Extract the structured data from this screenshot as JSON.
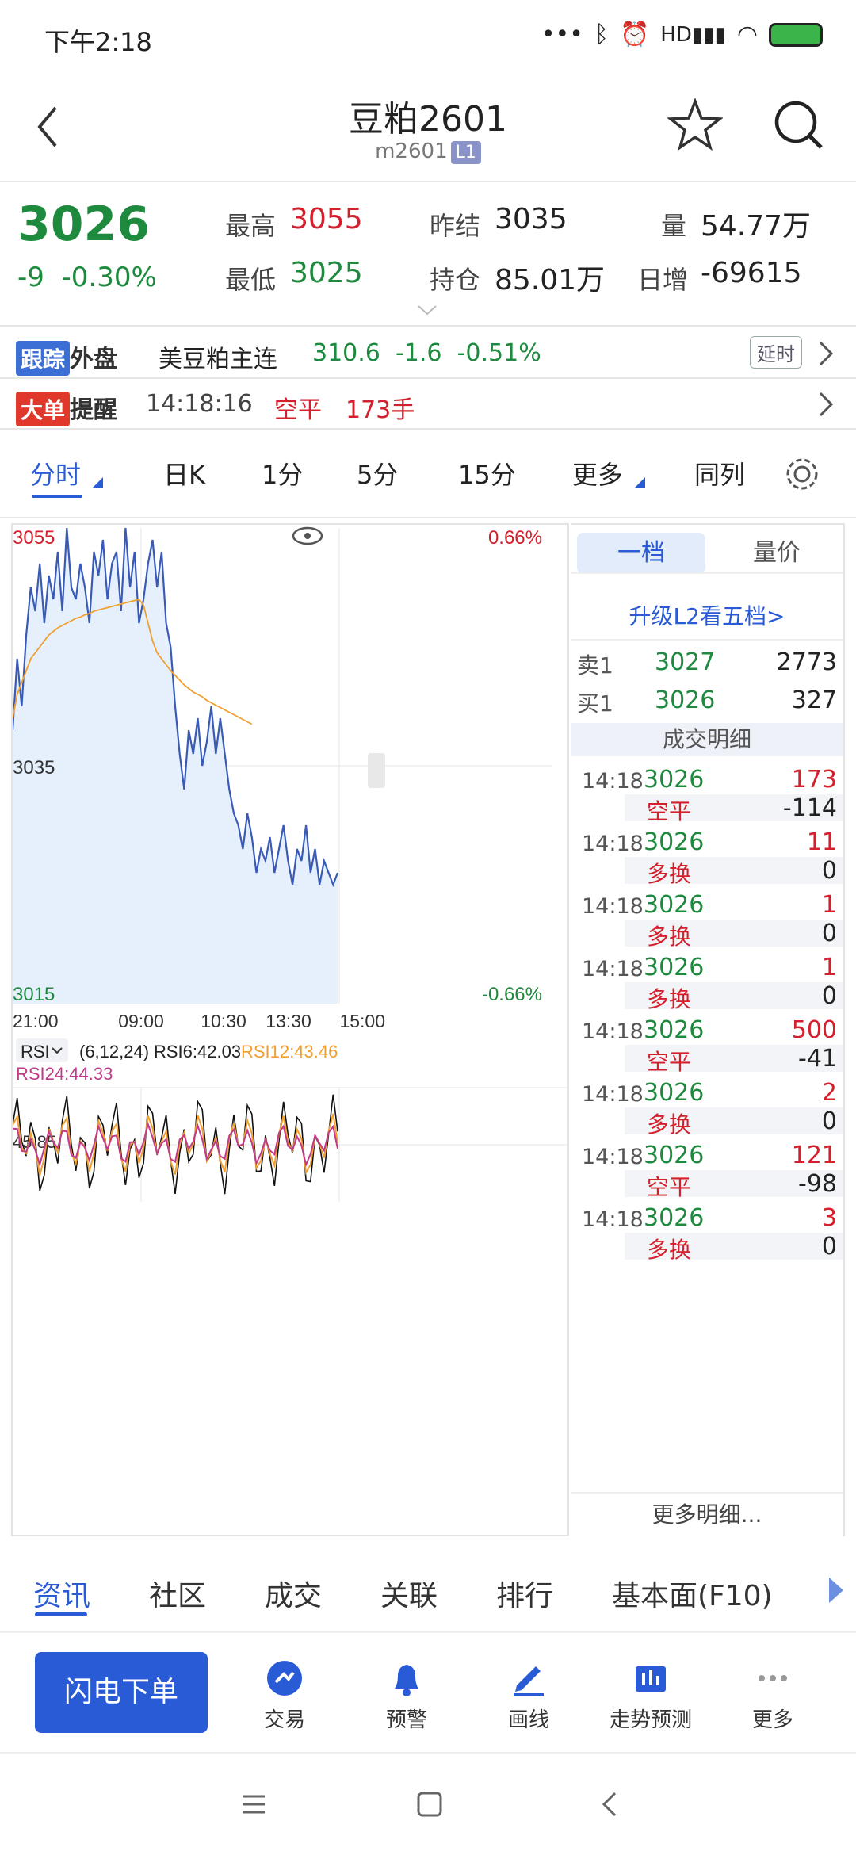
{
  "status": {
    "time": "下午2:18",
    "hd": "HD"
  },
  "header": {
    "title": "豆粕2601",
    "code": "m2601",
    "level": "L1"
  },
  "quote": {
    "price": "3026",
    "change": "-9",
    "change_pct": "-0.30%",
    "high_label": "最高",
    "high": "3055",
    "low_label": "最低",
    "low": "3025",
    "prev_settle_label": "昨结",
    "prev_settle": "3035",
    "open_int_label": "持仓",
    "open_int": "85.01万",
    "vol_label": "量",
    "vol": "54.77万",
    "daily_inc_label": "日增",
    "daily_inc": "-69615"
  },
  "foreign": {
    "tag1": "跟踪",
    "tag2": "外盘",
    "name": "美豆粕主连",
    "price": "310.6",
    "change": "-1.6",
    "change_pct": "-0.51%",
    "delay": "延时"
  },
  "bigorder": {
    "tag1": "大单",
    "tag2": "提醒",
    "time": "14:18:16",
    "type": "空平",
    "qty": "173手"
  },
  "tabs": {
    "items": [
      "分时",
      "日K",
      "1分",
      "5分",
      "15分",
      "更多",
      "同列"
    ]
  },
  "chart_data": {
    "type": "line",
    "y_top": "3055",
    "y_mid": "3035",
    "y_bottom": "3015",
    "pct_top": "0.66%",
    "pct_bottom": "-0.66%",
    "x_labels": [
      "21:00",
      "09:00",
      "10:30",
      "13:30",
      "15:00"
    ],
    "ylim": [
      3015,
      3055
    ],
    "price_series": {
      "name": "price",
      "values": [
        3038,
        3044,
        3040,
        3046,
        3050,
        3048,
        3052,
        3047,
        3051,
        3049,
        3053,
        3048,
        3055,
        3050,
        3049,
        3052,
        3050,
        3047,
        3053,
        3051,
        3054,
        3049,
        3052,
        3053,
        3048,
        3055,
        3050,
        3053,
        3047,
        3049,
        3052,
        3054,
        3050,
        3053,
        3047,
        3045,
        3040,
        3036,
        3033,
        3038,
        3036,
        3039,
        3035,
        3037,
        3040,
        3036,
        3039,
        3036,
        3033,
        3031,
        3030,
        3028,
        3031,
        3029,
        3026,
        3028,
        3027,
        3029,
        3026,
        3028,
        3030,
        3027,
        3025,
        3028,
        3027,
        3030,
        3026,
        3028,
        3025,
        3027,
        3026,
        3025,
        3026
      ]
    },
    "avg_series": {
      "name": "avg",
      "values": [
        3039,
        3041,
        3042,
        3043,
        3044,
        3044.5,
        3045,
        3045.5,
        3046,
        3046.3,
        3046.6,
        3046.8,
        3047,
        3047.2,
        3047.4,
        3047.5,
        3047.7,
        3047.8,
        3048,
        3048.1,
        3048.2,
        3048.3,
        3048.4,
        3048.5,
        3048.6,
        3048.7,
        3048.8,
        3048.9,
        3049,
        3048.5,
        3047,
        3045.5,
        3044.5,
        3044,
        3043.5,
        3043,
        3042.6,
        3042.2,
        3041.8,
        3041.5,
        3041.2,
        3041,
        3040.8,
        3040.5,
        3040.3,
        3040.1,
        3039.9,
        3039.7,
        3039.5,
        3039.3,
        3039.1,
        3038.9,
        3038.7,
        3038.5
      ]
    }
  },
  "rsi": {
    "label": "RSI",
    "params": "(6,12,24)",
    "rsi6": "RSI6:42.03",
    "rsi12": "RSI12:43.46",
    "rsi24": "RSI24:44.33",
    "level": "45.85"
  },
  "side": {
    "tab1": "一档",
    "tab2": "量价",
    "upgrade": "升级L2看五档>",
    "sell_label": "卖1",
    "sell_price": "3027",
    "sell_vol": "2773",
    "buy_label": "买1",
    "buy_price": "3026",
    "buy_vol": "327",
    "detail_title": "成交明细",
    "trades": [
      {
        "time": "14:18",
        "price": "3026",
        "vol": "173",
        "type": "空平",
        "oi": "-114"
      },
      {
        "time": "14:18",
        "price": "3026",
        "vol": "11",
        "type": "多换",
        "oi": "0"
      },
      {
        "time": "14:18",
        "price": "3026",
        "vol": "1",
        "type": "多换",
        "oi": "0"
      },
      {
        "time": "14:18",
        "price": "3026",
        "vol": "1",
        "type": "多换",
        "oi": "0"
      },
      {
        "time": "14:18",
        "price": "3026",
        "vol": "500",
        "type": "空平",
        "oi": "-41"
      },
      {
        "time": "14:18",
        "price": "3026",
        "vol": "2",
        "type": "多换",
        "oi": "0"
      },
      {
        "time": "14:18",
        "price": "3026",
        "vol": "121",
        "type": "空平",
        "oi": "-98"
      },
      {
        "time": "14:18",
        "price": "3026",
        "vol": "3",
        "type": "多换",
        "oi": "0"
      }
    ],
    "more": "更多明细..."
  },
  "bottomtabs": {
    "items": [
      "资讯",
      "社区",
      "成交",
      "关联",
      "排行",
      "基本面(F10)"
    ]
  },
  "actions": {
    "flash": "闪电下单",
    "items": [
      "交易",
      "预警",
      "画线",
      "走势预测",
      "更多"
    ]
  },
  "colors": {
    "accent": "#2a5bd7",
    "up": "#d3202c",
    "down": "#1e8a3e",
    "line": "#3a5bb5",
    "avg": "#f0a030"
  }
}
